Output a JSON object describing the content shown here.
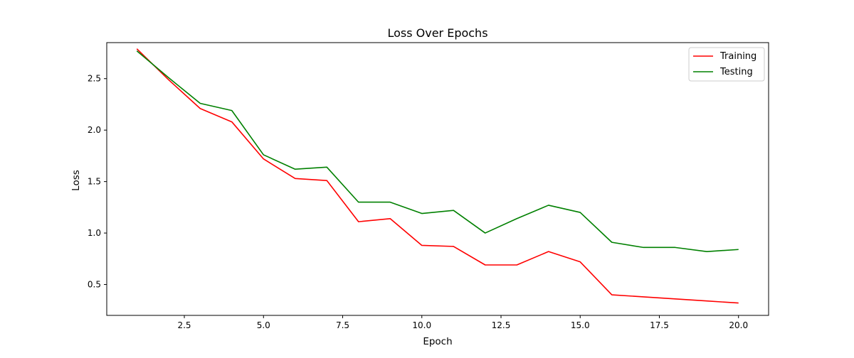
{
  "chart_data": {
    "type": "line",
    "title": "Loss Over Epochs",
    "xlabel": "Epoch",
    "ylabel": "Loss",
    "xlim": [
      0.05,
      20.95
    ],
    "ylim": [
      0.2,
      2.85
    ],
    "xticks": [
      2.5,
      5.0,
      7.5,
      10.0,
      12.5,
      15.0,
      17.5,
      20.0
    ],
    "xtick_labels": [
      "2.5",
      "5.0",
      "7.5",
      "10.0",
      "12.5",
      "15.0",
      "17.5",
      "20.0"
    ],
    "yticks": [
      0.5,
      1.0,
      1.5,
      2.0,
      2.5
    ],
    "ytick_labels": [
      "0.5",
      "1.0",
      "1.5",
      "2.0",
      "2.5"
    ],
    "grid": false,
    "legend_position": "top-right",
    "x": [
      1,
      2,
      3,
      4,
      5,
      6,
      7,
      8,
      9,
      10,
      11,
      12,
      13,
      14,
      15,
      16,
      17,
      18,
      19,
      20
    ],
    "series": [
      {
        "name": "Training",
        "color": "#ff0000",
        "values": [
          2.79,
          2.49,
          2.21,
          2.08,
          1.72,
          1.53,
          1.51,
          1.11,
          1.14,
          0.88,
          0.87,
          0.69,
          0.69,
          0.82,
          0.72,
          0.4,
          0.38,
          0.36,
          0.34,
          0.32
        ]
      },
      {
        "name": "Testing",
        "color": "#008000",
        "values": [
          2.77,
          2.51,
          2.26,
          2.19,
          1.76,
          1.62,
          1.64,
          1.3,
          1.3,
          1.19,
          1.22,
          1.0,
          1.14,
          1.27,
          1.2,
          0.91,
          0.86,
          0.86,
          0.82,
          0.84
        ]
      }
    ]
  }
}
